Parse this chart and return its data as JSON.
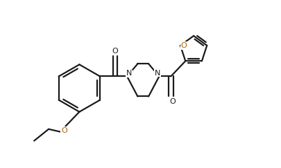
{
  "bg_color": "#ffffff",
  "line_color": "#1a1a1a",
  "oxygen_color": "#b35900",
  "nitrogen_color": "#1a1a1a",
  "line_width": 1.6,
  "figsize": [
    4.06,
    2.43
  ],
  "dpi": 100,
  "xlim": [
    0,
    10
  ],
  "ylim": [
    0,
    6
  ]
}
